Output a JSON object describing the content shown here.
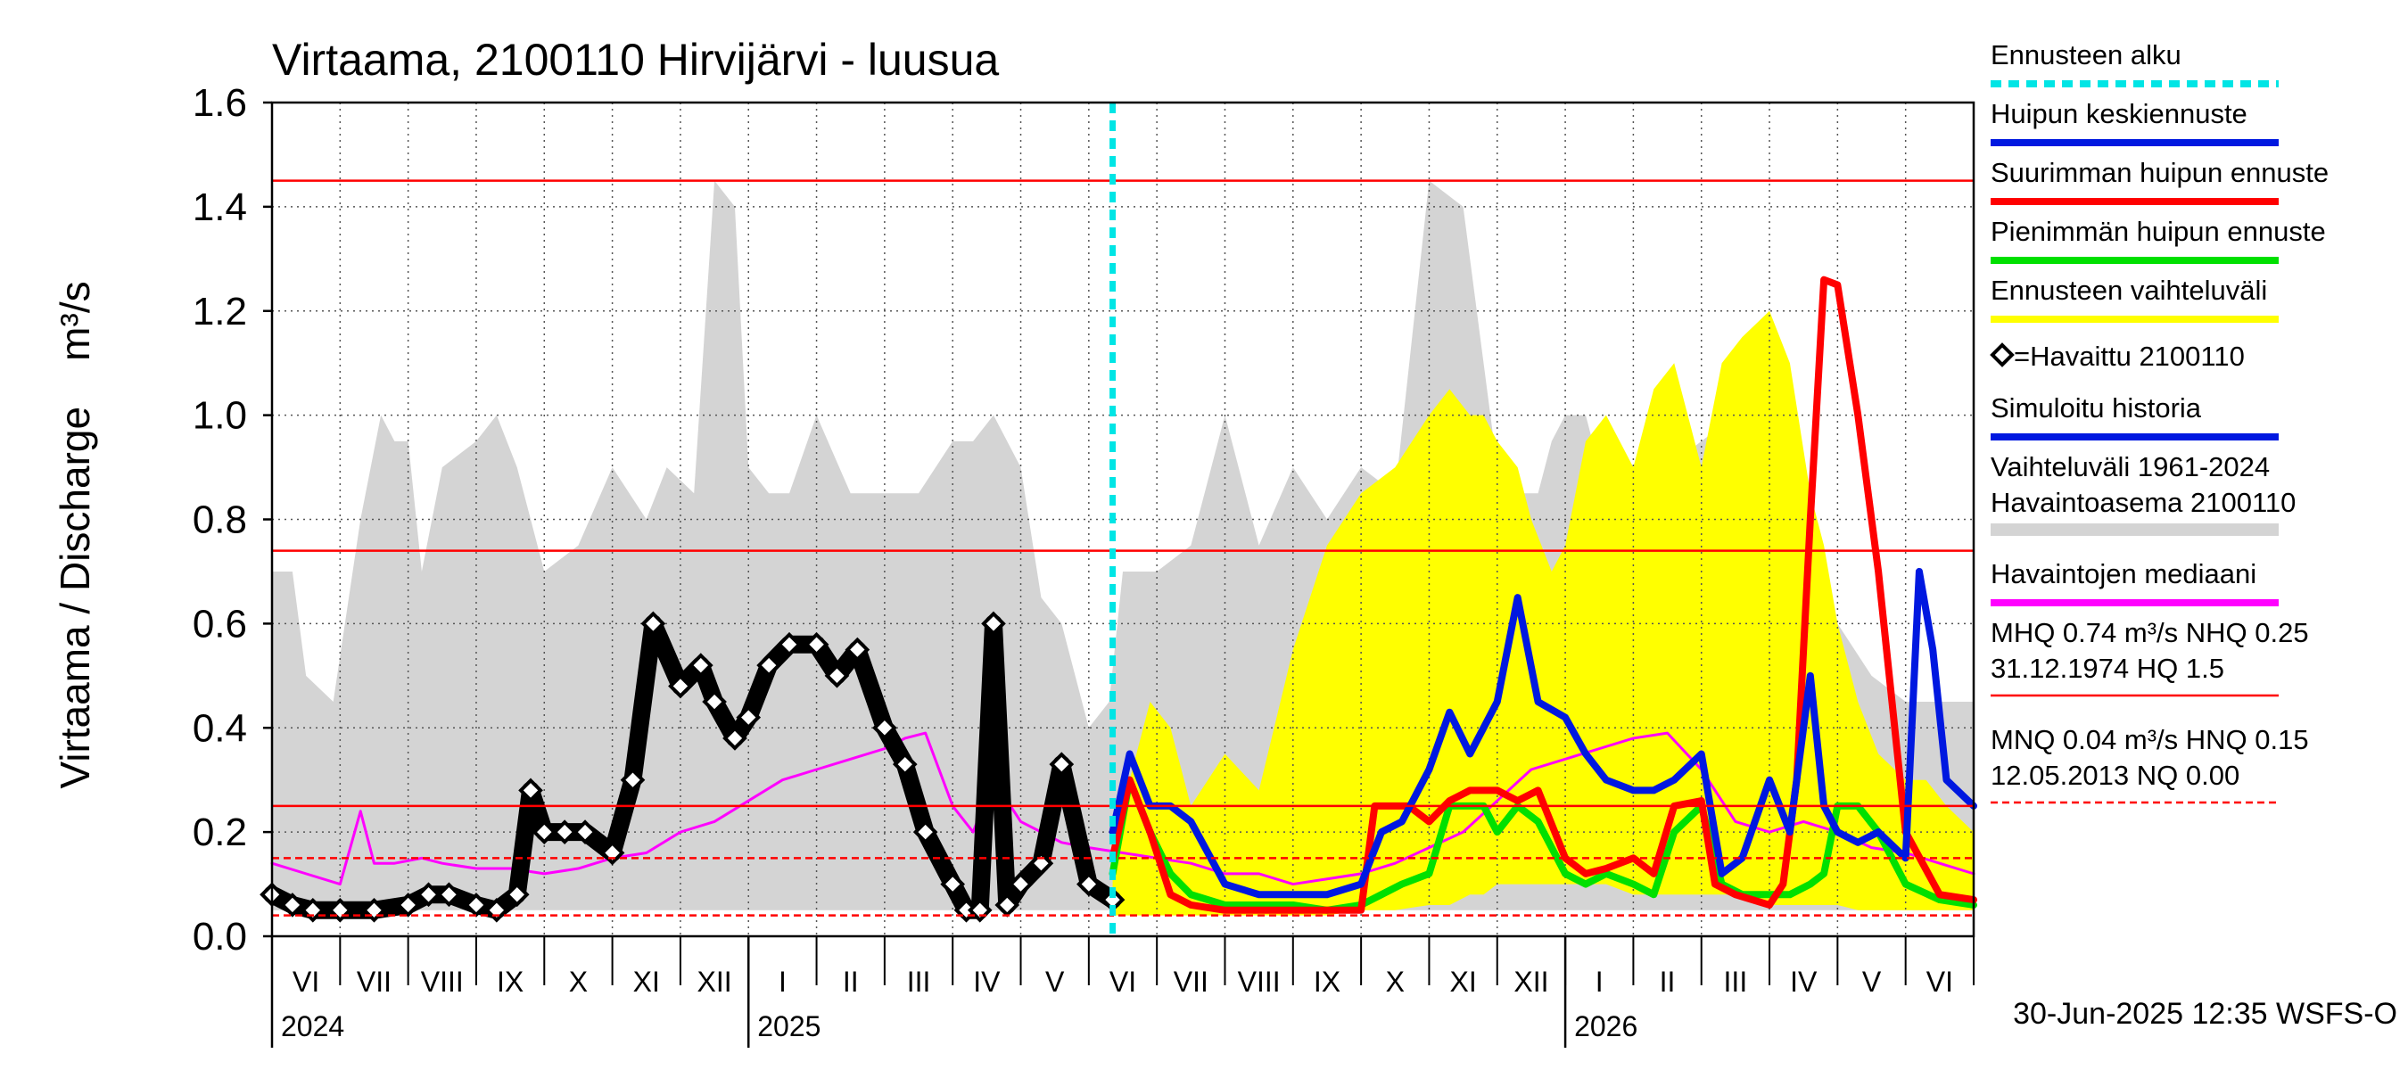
{
  "chart_data": {
    "type": "line",
    "title": "Virtaama, 2100110 Hirvijärvi - luusua",
    "ylabel": "Virtaama / Discharge    m³/s",
    "ylim": [
      0,
      1.6
    ],
    "yticks": [
      "0.0",
      "0.2",
      "0.4",
      "0.6",
      "0.8",
      "1.0",
      "1.2",
      "1.4",
      "1.6"
    ],
    "months": [
      "VI",
      "VII",
      "VIII",
      "IX",
      "X",
      "XI",
      "XII",
      "I",
      "II",
      "III",
      "IV",
      "V",
      "VI",
      "VII",
      "VIII",
      "IX",
      "X",
      "XI",
      "XII",
      "I",
      "II",
      "III",
      "IV",
      "V",
      "VI"
    ],
    "years": [
      "2024",
      "2025",
      "2026"
    ],
    "footer": "30-Jun-2025 12:35 WSFS-O",
    "forecast_start_month_index": 12.35,
    "reference_lines": [
      {
        "value": 1.45,
        "style": "solid"
      },
      {
        "value": 0.74,
        "style": "solid"
      },
      {
        "value": 0.25,
        "style": "solid"
      },
      {
        "value": 0.15,
        "style": "dashed"
      },
      {
        "value": 0.04,
        "style": "dashed"
      }
    ],
    "legend": [
      {
        "label": "Ennusteen alku",
        "color": "#00e5e5",
        "style": "dashed"
      },
      {
        "label": "Huipun keskiennuste",
        "color": "#0018e0",
        "style": "solid"
      },
      {
        "label": "Suurimman huipun ennuste",
        "color": "#ff0000",
        "style": "solid"
      },
      {
        "label": "Pienimmän huipun ennuste",
        "color": "#00e000",
        "style": "solid"
      },
      {
        "label": "Ennusteen vaihteluväli",
        "color": "#ffff00",
        "style": "solid"
      },
      {
        "label": "=Havaittu 2100110",
        "color": "#000000",
        "style": "marker"
      },
      {
        "label": "Simuloitu historia",
        "color": "#0018e0",
        "style": "solid"
      },
      {
        "label": "Vaihteluväli 1961-2024",
        "label2": " Havaintoasema 2100110",
        "color": "#d4d4d4",
        "style": "solid"
      },
      {
        "label": "Havaintojen mediaani",
        "color": "#ff00ff",
        "style": "solid"
      },
      {
        "label": "MHQ 0.74 m³/s NHQ 0.25",
        "label2": "31.12.1974 HQ  1.5",
        "color": "#ff0000",
        "style": "solid"
      },
      {
        "label": "MNQ 0.04 m³/s HNQ 0.15",
        "label2": "12.05.2013 NQ 0.00",
        "color": "#ff0000",
        "style": "dashed"
      }
    ],
    "series": [
      {
        "name": "Vaihteluväli 1961-2024 Havaintoasema 2100110",
        "kind": "range",
        "x": [
          0,
          0.3,
          0.5,
          0.9,
          1.3,
          1.6,
          1.8,
          2.0,
          2.2,
          2.5,
          3.0,
          3.3,
          3.6,
          4.0,
          4.5,
          5.0,
          5.5,
          5.8,
          6.2,
          6.5,
          6.8,
          7.0,
          7.3,
          7.6,
          8.0,
          8.5,
          9.0,
          9.5,
          10.0,
          10.3,
          10.6,
          11.0,
          11.3,
          11.6,
          12.0,
          12.3,
          12.5,
          13.0,
          13.5,
          14.0,
          14.5,
          15.0,
          15.5,
          16.0,
          16.5,
          17.0,
          17.5,
          18.0,
          18.3,
          18.6,
          18.8,
          19.0,
          19.3,
          19.6,
          20.0,
          20.5,
          21.0,
          21.5,
          22.0,
          22.5,
          23.0,
          23.5,
          24.0,
          24.5,
          25.0
        ],
        "upper": [
          0.7,
          0.7,
          0.5,
          0.45,
          0.8,
          1.0,
          0.95,
          0.95,
          0.7,
          0.9,
          0.95,
          1.0,
          0.9,
          0.7,
          0.75,
          0.9,
          0.8,
          0.9,
          0.85,
          1.45,
          1.4,
          0.9,
          0.85,
          0.85,
          1.0,
          0.85,
          0.85,
          0.85,
          0.95,
          0.95,
          1.0,
          0.9,
          0.65,
          0.6,
          0.4,
          0.45,
          0.7,
          0.7,
          0.75,
          1.0,
          0.75,
          0.9,
          0.8,
          0.9,
          0.85,
          1.45,
          1.4,
          0.9,
          0.85,
          0.85,
          0.95,
          1.0,
          1.0,
          0.85,
          0.85,
          0.9,
          0.95,
          1.0,
          0.65,
          0.6,
          0.6,
          0.5,
          0.45,
          0.45,
          0.45
        ],
        "lower": [
          0.05,
          0.05,
          0.05,
          0.05,
          0.05,
          0.05,
          0.05,
          0.05,
          0.05,
          0.05,
          0.05,
          0.05,
          0.05,
          0.05,
          0.05,
          0.05,
          0.05,
          0.05,
          0.05,
          0.05,
          0.05,
          0.05,
          0.05,
          0.05,
          0.05,
          0.05,
          0.05,
          0.05,
          0.05,
          0.05,
          0.05,
          0.05,
          0.05,
          0.05,
          0.05,
          0.05,
          0.05,
          0.05,
          0.05,
          0.05,
          0.05,
          0.05,
          0.05,
          0.05,
          0.05,
          0.05,
          0.05,
          0.05,
          0.05,
          0.05,
          0.05,
          0.05,
          0.05,
          0.05,
          0.05,
          0.05,
          0.05,
          0.05,
          0.05,
          0.05,
          0.05,
          0.05,
          0.05,
          0.05,
          0.05
        ]
      },
      {
        "name": "Ennusteen vaihteluväli",
        "kind": "range",
        "x": [
          12.35,
          12.6,
          12.9,
          13.2,
          13.5,
          14.0,
          14.5,
          15.0,
          15.5,
          16.0,
          16.5,
          17.0,
          17.3,
          17.6,
          17.8,
          18.0,
          18.3,
          18.5,
          18.8,
          19.0,
          19.3,
          19.6,
          20.0,
          20.3,
          20.6,
          21.0,
          21.3,
          21.6,
          22.0,
          22.3,
          22.6,
          22.8,
          23.0,
          23.3,
          23.6,
          24.0,
          24.3,
          24.6,
          25.0
        ],
        "upper": [
          0.2,
          0.3,
          0.45,
          0.4,
          0.25,
          0.35,
          0.28,
          0.55,
          0.75,
          0.85,
          0.9,
          1.0,
          1.05,
          1.0,
          1.0,
          0.95,
          0.9,
          0.8,
          0.7,
          0.75,
          0.95,
          1.0,
          0.9,
          1.05,
          1.1,
          0.9,
          1.1,
          1.15,
          1.2,
          1.1,
          0.85,
          0.75,
          0.6,
          0.45,
          0.35,
          0.3,
          0.3,
          0.25,
          0.2
        ],
        "lower": [
          0.04,
          0.04,
          0.04,
          0.04,
          0.04,
          0.04,
          0.04,
          0.04,
          0.04,
          0.05,
          0.05,
          0.06,
          0.06,
          0.08,
          0.08,
          0.1,
          0.1,
          0.1,
          0.1,
          0.1,
          0.1,
          0.1,
          0.08,
          0.08,
          0.08,
          0.08,
          0.08,
          0.08,
          0.06,
          0.06,
          0.06,
          0.06,
          0.06,
          0.05,
          0.05,
          0.05,
          0.05,
          0.05,
          0.05
        ]
      },
      {
        "name": "Havaintojen mediaani",
        "x": [
          0,
          0.5,
          1.0,
          1.3,
          1.5,
          1.8,
          2.2,
          2.5,
          3.0,
          3.5,
          4.0,
          4.5,
          5.0,
          5.5,
          6.0,
          6.5,
          7.0,
          7.5,
          8.0,
          8.5,
          9.0,
          9.3,
          9.6,
          10.0,
          10.3,
          10.6,
          11.0,
          11.3,
          11.6,
          12.0,
          12.5,
          13.0,
          13.5,
          14.0,
          14.5,
          15.0,
          15.5,
          16.0,
          16.5,
          17.0,
          17.5,
          18.0,
          18.5,
          19.0,
          19.5,
          20.0,
          20.5,
          21.0,
          21.5,
          22.0,
          22.5,
          23.0,
          23.5,
          24.0,
          24.5,
          25.0
        ],
        "values": [
          0.14,
          0.12,
          0.1,
          0.24,
          0.14,
          0.14,
          0.15,
          0.14,
          0.13,
          0.13,
          0.12,
          0.13,
          0.15,
          0.16,
          0.2,
          0.22,
          0.26,
          0.3,
          0.32,
          0.34,
          0.36,
          0.38,
          0.39,
          0.25,
          0.2,
          0.3,
          0.22,
          0.2,
          0.18,
          0.17,
          0.16,
          0.15,
          0.14,
          0.12,
          0.12,
          0.1,
          0.11,
          0.12,
          0.14,
          0.17,
          0.2,
          0.26,
          0.32,
          0.34,
          0.36,
          0.38,
          0.39,
          0.32,
          0.22,
          0.2,
          0.22,
          0.2,
          0.17,
          0.16,
          0.14,
          0.12
        ]
      },
      {
        "name": "Simuloitu historia",
        "x": [
          0,
          0.3,
          0.6,
          1.0,
          1.5,
          2.0,
          2.3,
          2.6,
          3.0,
          3.3,
          3.6,
          3.8,
          4.0,
          4.3,
          4.6,
          5.0,
          5.3,
          5.6,
          6.0,
          6.3,
          6.5,
          6.8,
          7.0,
          7.3,
          7.6,
          8.0,
          8.3,
          8.6,
          9.0,
          9.3,
          9.6,
          10.0,
          10.2,
          10.4,
          10.6,
          10.8,
          11.0,
          11.3,
          11.6,
          12.0,
          12.35
        ],
        "values": [
          0.08,
          0.06,
          0.05,
          0.05,
          0.05,
          0.06,
          0.08,
          0.08,
          0.06,
          0.05,
          0.08,
          0.28,
          0.2,
          0.2,
          0.2,
          0.16,
          0.3,
          0.6,
          0.48,
          0.52,
          0.45,
          0.38,
          0.42,
          0.52,
          0.56,
          0.56,
          0.5,
          0.55,
          0.4,
          0.33,
          0.2,
          0.1,
          0.05,
          0.05,
          0.6,
          0.06,
          0.1,
          0.14,
          0.33,
          0.1,
          0.07
        ]
      },
      {
        "name": "=Havaittu 2100110",
        "x": [
          0,
          0.3,
          0.6,
          1.0,
          1.5,
          2.0,
          2.3,
          2.6,
          3.0,
          3.3,
          3.6,
          3.8,
          4.0,
          4.3,
          4.6,
          5.0,
          5.3,
          5.6,
          6.0,
          6.3,
          6.5,
          6.8,
          7.0,
          7.3,
          7.6,
          8.0,
          8.3,
          8.6,
          9.0,
          9.3,
          9.6,
          10.0,
          10.2,
          10.4,
          10.6,
          10.8,
          11.0,
          11.3,
          11.6,
          12.0,
          12.35
        ],
        "values": [
          0.08,
          0.06,
          0.05,
          0.05,
          0.05,
          0.06,
          0.08,
          0.08,
          0.06,
          0.05,
          0.08,
          0.28,
          0.2,
          0.2,
          0.2,
          0.16,
          0.3,
          0.6,
          0.48,
          0.52,
          0.45,
          0.38,
          0.42,
          0.52,
          0.56,
          0.56,
          0.5,
          0.55,
          0.4,
          0.33,
          0.2,
          0.1,
          0.05,
          0.05,
          0.6,
          0.06,
          0.1,
          0.14,
          0.33,
          0.1,
          0.07
        ]
      },
      {
        "name": "Pienimmän huipun ennuste",
        "x": [
          12.35,
          12.6,
          12.9,
          13.2,
          13.5,
          14.0,
          14.5,
          15.0,
          15.5,
          16.0,
          16.3,
          16.6,
          17.0,
          17.3,
          17.6,
          17.8,
          18.0,
          18.3,
          18.6,
          19.0,
          19.3,
          19.6,
          20.0,
          20.3,
          20.6,
          21.0,
          21.3,
          21.6,
          22.0,
          22.3,
          22.6,
          22.8,
          23.0,
          23.3,
          23.6,
          24.0,
          24.5,
          25.0
        ],
        "values": [
          0.12,
          0.3,
          0.2,
          0.12,
          0.08,
          0.06,
          0.06,
          0.06,
          0.05,
          0.06,
          0.08,
          0.1,
          0.12,
          0.25,
          0.25,
          0.25,
          0.2,
          0.25,
          0.22,
          0.12,
          0.1,
          0.12,
          0.1,
          0.08,
          0.2,
          0.25,
          0.1,
          0.08,
          0.08,
          0.08,
          0.1,
          0.12,
          0.25,
          0.25,
          0.2,
          0.1,
          0.07,
          0.06
        ]
      },
      {
        "name": "Suurimman huipun ennuste",
        "x": [
          12.35,
          12.6,
          12.9,
          13.2,
          13.5,
          14.0,
          14.5,
          15.0,
          15.5,
          16.0,
          16.2,
          16.4,
          16.7,
          17.0,
          17.3,
          17.6,
          18.0,
          18.3,
          18.6,
          19.0,
          19.3,
          19.6,
          20.0,
          20.3,
          20.6,
          21.0,
          21.2,
          21.5,
          22.0,
          22.2,
          22.4,
          22.6,
          22.8,
          23.0,
          23.3,
          23.6,
          24.0,
          24.5,
          25.0
        ],
        "values": [
          0.15,
          0.3,
          0.2,
          0.08,
          0.06,
          0.05,
          0.05,
          0.05,
          0.05,
          0.05,
          0.25,
          0.25,
          0.25,
          0.22,
          0.26,
          0.28,
          0.28,
          0.26,
          0.28,
          0.15,
          0.12,
          0.13,
          0.15,
          0.12,
          0.25,
          0.26,
          0.1,
          0.08,
          0.06,
          0.1,
          0.3,
          0.8,
          1.26,
          1.25,
          1.0,
          0.7,
          0.2,
          0.08,
          0.07
        ]
      },
      {
        "name": "Huipun keskiennuste",
        "x": [
          12.35,
          12.6,
          12.9,
          13.2,
          13.5,
          14.0,
          14.5,
          15.0,
          15.5,
          16.0,
          16.3,
          16.6,
          17.0,
          17.3,
          17.6,
          18.0,
          18.3,
          18.6,
          19.0,
          19.3,
          19.6,
          20.0,
          20.3,
          20.6,
          21.0,
          21.3,
          21.6,
          22.0,
          22.3,
          22.6,
          22.8,
          23.0,
          23.3,
          23.6,
          24.0,
          24.2,
          24.4,
          24.6,
          25.0
        ],
        "values": [
          0.2,
          0.35,
          0.25,
          0.25,
          0.22,
          0.1,
          0.08,
          0.08,
          0.08,
          0.1,
          0.2,
          0.22,
          0.32,
          0.43,
          0.35,
          0.45,
          0.65,
          0.45,
          0.42,
          0.35,
          0.3,
          0.28,
          0.28,
          0.3,
          0.35,
          0.12,
          0.15,
          0.3,
          0.2,
          0.5,
          0.25,
          0.2,
          0.18,
          0.2,
          0.15,
          0.7,
          0.55,
          0.3,
          0.25
        ]
      }
    ]
  }
}
